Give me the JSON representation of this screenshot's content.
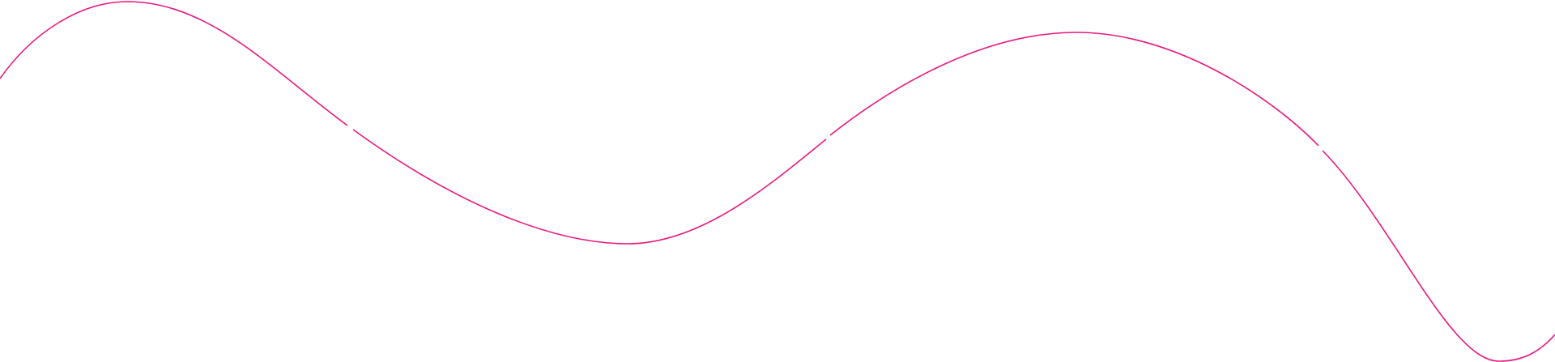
{
  "decoration": {
    "type": "wavy-line",
    "stroke_color": "#e6197f",
    "background_color": "#ffffff",
    "segments": 4
  }
}
